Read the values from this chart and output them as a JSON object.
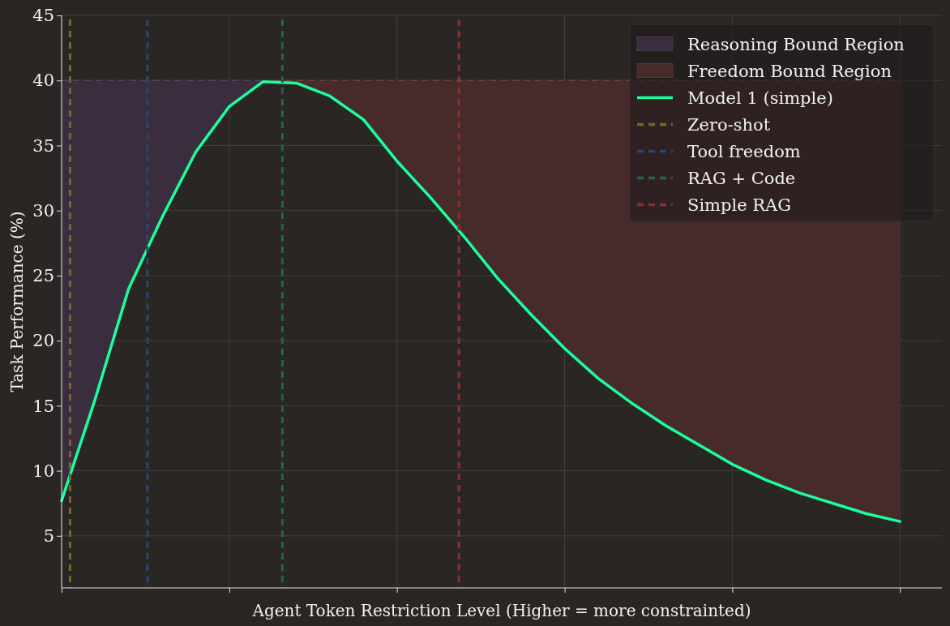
{
  "chart_data": {
    "type": "line",
    "xlabel": "Agent Token Restriction Level (Higher = more constrainted)",
    "ylabel": "Task Performance (%)",
    "categories": [
      null,
      null,
      null,
      null,
      null,
      null,
      null,
      null,
      null,
      null,
      null,
      null,
      null,
      null,
      null,
      null,
      null,
      null,
      null,
      null,
      null,
      null,
      null,
      null,
      null,
      null
    ],
    "ylim": [
      1,
      45
    ],
    "yticks": [
      5,
      10,
      15,
      20,
      25,
      30,
      35,
      40,
      45
    ],
    "grid": true,
    "legend": "top right",
    "series": [
      {
        "name": "Reasoning Bound Region",
        "type": "area",
        "color": "#3a2d3e",
        "line_style": "dashed",
        "values": [
          40,
          40,
          40,
          40,
          40,
          40,
          40,
          null,
          null,
          null,
          null,
          null,
          null,
          null,
          null,
          null,
          null,
          null,
          null,
          null,
          null,
          null,
          null,
          null,
          null,
          null
        ]
      },
      {
        "name": "Freedom Bound Region",
        "type": "area",
        "color": "#472b2a",
        "line_style": "dashed",
        "values": [
          null,
          null,
          null,
          null,
          null,
          null,
          40,
          40,
          40,
          40,
          40,
          40,
          40,
          40,
          40,
          40,
          40,
          40,
          40,
          40,
          40,
          40,
          40,
          40,
          40,
          40
        ]
      },
      {
        "name": "Model 1 (simple)",
        "color": "#1aff9c",
        "values": [
          7.7,
          15.5,
          24,
          29.5,
          34.5,
          38,
          39.9,
          39.8,
          38.8,
          37,
          33.8,
          31,
          28,
          24.8,
          22,
          19.4,
          17.1,
          15.2,
          13.5,
          12,
          10.5,
          9.3,
          8.3,
          7.5,
          6.7,
          6.1
        ]
      }
    ],
    "ref_lines": [
      {
        "axis": "x",
        "label": "Zero-shot",
        "color": "#7a6628",
        "line_style": "dashed"
      },
      {
        "axis": "x",
        "label": "Tool freedom",
        "color": "#2a4670",
        "line_style": "dashed"
      },
      {
        "axis": "x",
        "label": "RAG + Code",
        "color": "#1f6650",
        "line_style": "dashed"
      },
      {
        "axis": "x",
        "label": "Simple RAG",
        "color": "#8a3030",
        "line_style": "dashed"
      }
    ]
  }
}
